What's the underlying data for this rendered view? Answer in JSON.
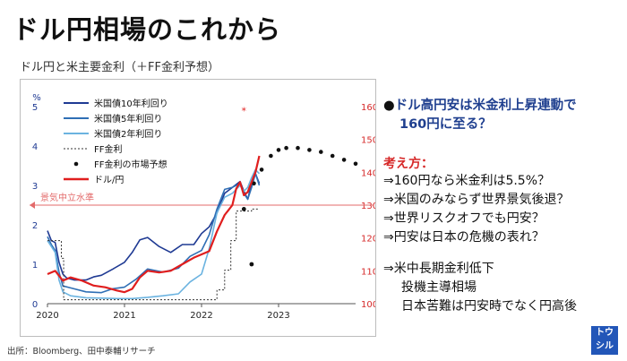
{
  "title": "ドル円相場のこれから",
  "subtitle": "ドル円と米主要金利（＋FF金利予想）",
  "source": "出所：Bloomberg、田中泰輔リサーチ",
  "logo": {
    "line1": "トウ",
    "line2": "シル"
  },
  "right_panel": {
    "headline_bullet": "●",
    "headline_line1": "ドル高円安は米金利上昇連動で",
    "headline_line2": "160円に至る？",
    "kangae": "考え方：",
    "points": [
      "⇒160円なら米金利は5.5%？",
      "⇒米国のみならず世界景気後退？",
      "⇒世界リスクオフでも円安？",
      "⇒円安は日本の危機の表れ？"
    ],
    "points2": [
      "⇒米中長期金利低下",
      "投機主導相場",
      "日本苦難は円安時でなく円高後"
    ]
  },
  "chart_data": {
    "type": "line",
    "title": "",
    "left_axis_label": "%",
    "left_ylim": [
      0,
      5
    ],
    "left_ticks": [
      "0",
      "1",
      "2",
      "3",
      "4",
      "5"
    ],
    "right_ylim": [
      100,
      160
    ],
    "right_ticks": [
      "100",
      "110",
      "120",
      "130",
      "140",
      "150",
      "160"
    ],
    "xlim": [
      2020,
      2024
    ],
    "x_ticks": [
      "2020",
      "2021",
      "2022",
      "2023"
    ],
    "legend": [
      {
        "name": "米国債10年利回り",
        "color": "#1f3a93"
      },
      {
        "name": "米国債5年利回り",
        "color": "#2f6fb5"
      },
      {
        "name": "米国債2年利回り",
        "color": "#6bb3e0"
      },
      {
        "name": "FF金利",
        "color": "#333333"
      },
      {
        "name": "FF金利の市場予想",
        "color": "#111111"
      },
      {
        "name": "ドル/円",
        "color": "#e01e1e"
      }
    ],
    "reference_line": {
      "label": "景気中立水準",
      "value": 2.5,
      "color": "#e36b6b"
    },
    "series": [
      {
        "name": "米国債10年利回り",
        "axis": "left",
        "color": "#1f3a93",
        "x": [
          2020.0,
          2020.05,
          2020.1,
          2020.15,
          2020.2,
          2020.25,
          2020.35,
          2020.5,
          2020.6,
          2020.7,
          2020.85,
          2021.0,
          2021.1,
          2021.2,
          2021.3,
          2021.45,
          2021.6,
          2021.75,
          2021.9,
          2022.0,
          2022.1,
          2022.2,
          2022.3,
          2022.4,
          2022.5,
          2022.55,
          2022.6,
          2022.65,
          2022.7,
          2022.75
        ],
        "y": [
          1.85,
          1.6,
          1.55,
          1.05,
          0.75,
          0.65,
          0.6,
          0.6,
          0.68,
          0.72,
          0.88,
          1.05,
          1.3,
          1.62,
          1.68,
          1.45,
          1.3,
          1.5,
          1.5,
          1.78,
          1.95,
          2.3,
          2.8,
          2.95,
          3.1,
          2.85,
          2.65,
          3.05,
          3.3,
          3.05
        ]
      },
      {
        "name": "米国債5年利回り",
        "axis": "left",
        "color": "#2f6fb5",
        "x": [
          2020.0,
          2020.05,
          2020.1,
          2020.15,
          2020.2,
          2020.3,
          2020.5,
          2020.7,
          2020.85,
          2021.0,
          2021.15,
          2021.3,
          2021.5,
          2021.7,
          2021.85,
          2022.0,
          2022.1,
          2022.2,
          2022.3,
          2022.4,
          2022.5,
          2022.55,
          2022.6,
          2022.65,
          2022.7,
          2022.75
        ],
        "y": [
          1.7,
          1.5,
          1.35,
          0.8,
          0.45,
          0.4,
          0.3,
          0.28,
          0.38,
          0.42,
          0.62,
          0.88,
          0.8,
          0.9,
          1.2,
          1.35,
          1.75,
          2.4,
          2.9,
          2.95,
          3.05,
          2.8,
          2.65,
          2.95,
          3.3,
          3.0
        ]
      },
      {
        "name": "米国債2年利回り",
        "axis": "left",
        "color": "#6bb3e0",
        "x": [
          2020.0,
          2020.05,
          2020.1,
          2020.15,
          2020.2,
          2020.3,
          2020.5,
          2020.7,
          2020.9,
          2021.1,
          2021.3,
          2021.5,
          2021.7,
          2021.85,
          2022.0,
          2022.1,
          2022.2,
          2022.3,
          2022.4,
          2022.5,
          2022.55,
          2022.6,
          2022.65,
          2022.7,
          2022.75
        ],
        "y": [
          1.6,
          1.45,
          1.3,
          0.6,
          0.3,
          0.2,
          0.15,
          0.14,
          0.13,
          0.13,
          0.16,
          0.2,
          0.25,
          0.55,
          0.75,
          1.4,
          2.3,
          2.7,
          2.8,
          3.0,
          2.85,
          2.95,
          3.2,
          3.4,
          3.3
        ]
      },
      {
        "name": "FF金利",
        "axis": "left",
        "color": "#333333",
        "step": true,
        "x": [
          2020.0,
          2020.18,
          2020.21,
          2022.2,
          2022.3,
          2022.38,
          2022.45,
          2022.55,
          2022.65,
          2022.75
        ],
        "y": [
          1.6,
          1.15,
          0.1,
          0.35,
          0.85,
          1.6,
          2.35,
          2.35,
          2.4,
          2.4
        ]
      },
      {
        "name": "FF金利の市場予想",
        "axis": "left",
        "color": "#111111",
        "dotted": true,
        "x": [
          2022.68,
          2022.78,
          2022.9,
          2023.0,
          2023.1,
          2023.25,
          2023.4,
          2023.55,
          2023.7,
          2023.85,
          2024.0
        ],
        "y": [
          3.05,
          3.4,
          3.75,
          3.9,
          3.95,
          3.95,
          3.9,
          3.85,
          3.75,
          3.65,
          3.55
        ]
      },
      {
        "name": "ドル/円",
        "axis": "right",
        "color": "#e01e1e",
        "x": [
          2020.0,
          2020.1,
          2020.2,
          2020.3,
          2020.45,
          2020.6,
          2020.75,
          2020.9,
          2021.0,
          2021.1,
          2021.2,
          2021.3,
          2021.45,
          2021.6,
          2021.75,
          2021.9,
          2022.0,
          2022.1,
          2022.2,
          2022.3,
          2022.4,
          2022.45,
          2022.5,
          2022.55,
          2022.6,
          2022.65,
          2022.7,
          2022.75
        ],
        "y": [
          109,
          110,
          107,
          108,
          107,
          105.5,
          105,
          104,
          103.5,
          104.5,
          108,
          110,
          109.5,
          110,
          112,
          114,
          115,
          116,
          122,
          127,
          130,
          135,
          137,
          133,
          134,
          137,
          140,
          145
        ]
      }
    ],
    "extra_points": [
      {
        "x": 2022.55,
        "y": 2.4,
        "axis": "left"
      },
      {
        "x": 2022.65,
        "y": 1.0,
        "axis": "left"
      },
      {
        "x": 2022.55,
        "y": 4.9,
        "axis": "left",
        "color": "#e01e1e",
        "marker": "asterisk"
      }
    ]
  }
}
